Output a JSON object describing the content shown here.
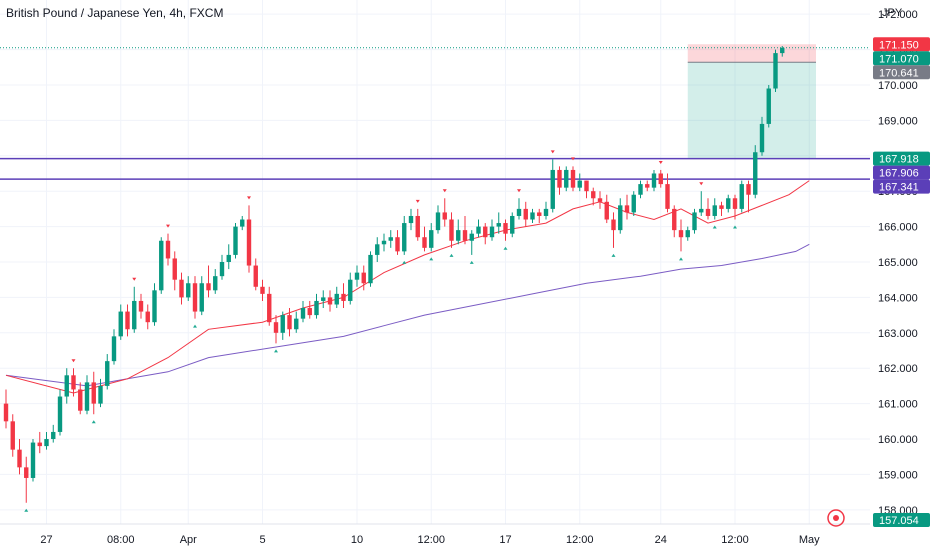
{
  "header": {
    "title": "British Pound / Japanese Yen, 4h, FXCM"
  },
  "chart_data": {
    "type": "candlestick",
    "currency": "JPY",
    "ylim": [
      157.6,
      172.4
    ],
    "y_ticks": [
      "172.000",
      "171.000",
      "170.000",
      "169.000",
      "168.000",
      "167.000",
      "166.000",
      "165.000",
      "164.000",
      "163.000",
      "162.000",
      "161.000",
      "160.000",
      "159.000",
      "158.000"
    ],
    "x_ticks": [
      {
        "label": "27",
        "bar": 6
      },
      {
        "label": "08:00",
        "bar": 17
      },
      {
        "label": "Apr",
        "bar": 27
      },
      {
        "label": "5",
        "bar": 38
      },
      {
        "label": "10",
        "bar": 52
      },
      {
        "label": "12:00",
        "bar": 63
      },
      {
        "label": "17",
        "bar": 74
      },
      {
        "label": "12:00",
        "bar": 85
      },
      {
        "label": "24",
        "bar": 97
      },
      {
        "label": "12:00",
        "bar": 108
      },
      {
        "label": "May",
        "bar": 119
      }
    ],
    "candles": [
      [
        161.0,
        160.5,
        161.4,
        160.3
      ],
      [
        160.5,
        159.7,
        160.7,
        159.5
      ],
      [
        159.7,
        159.2,
        160.0,
        159.0
      ],
      [
        159.2,
        158.9,
        159.5,
        158.2
      ],
      [
        158.9,
        159.9,
        160.0,
        158.8
      ],
      [
        159.9,
        159.8,
        160.2,
        159.6
      ],
      [
        159.8,
        160.0,
        160.2,
        159.7
      ],
      [
        160.0,
        160.2,
        160.4,
        159.9
      ],
      [
        160.2,
        161.2,
        161.4,
        160.1
      ],
      [
        161.2,
        161.8,
        162.0,
        161.0
      ],
      [
        161.8,
        161.4,
        162.0,
        161.2
      ],
      [
        161.4,
        160.8,
        161.6,
        160.7
      ],
      [
        160.8,
        161.6,
        161.8,
        160.7
      ],
      [
        161.6,
        161.0,
        161.9,
        160.7
      ],
      [
        161.0,
        161.5,
        161.7,
        160.9
      ],
      [
        161.5,
        162.2,
        162.4,
        161.4
      ],
      [
        162.2,
        162.9,
        163.1,
        162.1
      ],
      [
        162.9,
        163.6,
        163.8,
        162.8
      ],
      [
        163.6,
        163.1,
        163.8,
        162.9
      ],
      [
        163.1,
        163.9,
        164.3,
        163.0
      ],
      [
        163.9,
        163.6,
        164.1,
        163.4
      ],
      [
        163.6,
        163.3,
        163.8,
        163.1
      ],
      [
        163.3,
        164.2,
        164.4,
        163.2
      ],
      [
        164.2,
        165.6,
        165.7,
        164.1
      ],
      [
        165.6,
        165.1,
        165.8,
        164.9
      ],
      [
        165.1,
        164.5,
        165.3,
        164.2
      ],
      [
        164.5,
        164.0,
        164.7,
        163.8
      ],
      [
        164.0,
        164.4,
        164.6,
        163.9
      ],
      [
        164.4,
        163.6,
        164.6,
        163.4
      ],
      [
        163.6,
        164.4,
        164.6,
        163.5
      ],
      [
        164.4,
        164.2,
        164.9,
        164.0
      ],
      [
        164.2,
        164.6,
        164.8,
        164.1
      ],
      [
        164.6,
        165.0,
        165.2,
        164.5
      ],
      [
        165.0,
        165.2,
        165.5,
        164.8
      ],
      [
        165.2,
        166.0,
        166.1,
        165.1
      ],
      [
        166.0,
        166.2,
        166.3,
        165.9
      ],
      [
        166.2,
        164.9,
        166.6,
        164.7
      ],
      [
        164.9,
        164.3,
        165.1,
        164.2
      ],
      [
        164.3,
        164.1,
        164.5,
        163.9
      ],
      [
        164.1,
        163.3,
        164.3,
        163.2
      ],
      [
        163.3,
        163.0,
        163.5,
        162.7
      ],
      [
        163.0,
        163.5,
        163.6,
        162.8
      ],
      [
        163.5,
        163.1,
        163.7,
        162.9
      ],
      [
        163.1,
        163.4,
        163.6,
        163.0
      ],
      [
        163.4,
        163.7,
        163.9,
        163.3
      ],
      [
        163.7,
        163.5,
        163.9,
        163.4
      ],
      [
        163.5,
        163.9,
        164.1,
        163.4
      ],
      [
        163.9,
        164.0,
        164.2,
        163.7
      ],
      [
        164.0,
        163.8,
        164.2,
        163.6
      ],
      [
        163.8,
        164.1,
        164.3,
        163.7
      ],
      [
        164.1,
        163.9,
        164.4,
        163.7
      ],
      [
        163.9,
        164.5,
        164.7,
        163.8
      ],
      [
        164.5,
        164.7,
        164.9,
        164.3
      ],
      [
        164.7,
        164.4,
        164.9,
        164.2
      ],
      [
        164.4,
        165.2,
        165.3,
        164.3
      ],
      [
        165.2,
        165.5,
        165.7,
        165.0
      ],
      [
        165.5,
        165.6,
        165.8,
        165.3
      ],
      [
        165.6,
        165.7,
        165.9,
        165.4
      ],
      [
        165.7,
        165.3,
        165.9,
        165.2
      ],
      [
        165.3,
        166.1,
        166.3,
        165.2
      ],
      [
        166.1,
        166.3,
        166.5,
        165.9
      ],
      [
        166.3,
        165.7,
        166.5,
        165.6
      ],
      [
        165.7,
        165.4,
        166.0,
        165.3
      ],
      [
        165.4,
        165.9,
        166.1,
        165.3
      ],
      [
        165.9,
        166.4,
        166.6,
        165.8
      ],
      [
        166.4,
        166.2,
        166.8,
        166.0
      ],
      [
        166.2,
        165.6,
        166.4,
        165.4
      ],
      [
        165.6,
        165.9,
        166.2,
        165.5
      ],
      [
        165.9,
        165.6,
        166.3,
        165.5
      ],
      [
        165.6,
        165.8,
        165.9,
        165.2
      ],
      [
        165.8,
        166.0,
        166.2,
        165.7
      ],
      [
        166.0,
        165.7,
        166.1,
        165.5
      ],
      [
        165.7,
        166.0,
        166.2,
        165.6
      ],
      [
        166.0,
        166.1,
        166.4,
        165.8
      ],
      [
        166.1,
        165.8,
        166.2,
        165.6
      ],
      [
        165.8,
        166.3,
        166.4,
        165.7
      ],
      [
        166.3,
        166.5,
        166.8,
        166.2
      ],
      [
        166.5,
        166.2,
        166.7,
        166.0
      ],
      [
        166.2,
        166.4,
        166.5,
        166.1
      ],
      [
        166.4,
        166.3,
        166.5,
        166.1
      ],
      [
        166.3,
        166.5,
        166.7,
        166.2
      ],
      [
        166.5,
        167.6,
        167.9,
        166.4
      ],
      [
        167.6,
        167.1,
        167.7,
        166.9
      ],
      [
        167.1,
        167.6,
        167.7,
        167.0
      ],
      [
        167.6,
        167.1,
        167.7,
        167.0
      ],
      [
        167.1,
        167.3,
        167.5,
        167.0
      ],
      [
        167.3,
        167.0,
        167.3,
        166.8
      ],
      [
        167.0,
        166.8,
        167.1,
        166.6
      ],
      [
        166.8,
        166.7,
        167.0,
        166.5
      ],
      [
        166.7,
        166.2,
        166.9,
        166.1
      ],
      [
        166.2,
        165.9,
        166.4,
        165.4
      ],
      [
        165.9,
        166.6,
        166.8,
        165.8
      ],
      [
        166.6,
        166.4,
        166.9,
        166.2
      ],
      [
        166.4,
        166.9,
        167.0,
        166.3
      ],
      [
        166.9,
        167.2,
        167.3,
        166.8
      ],
      [
        167.2,
        167.1,
        167.3,
        167.0
      ],
      [
        167.1,
        167.5,
        167.6,
        167.0
      ],
      [
        167.5,
        167.2,
        167.6,
        167.1
      ],
      [
        167.2,
        166.5,
        167.5,
        166.4
      ],
      [
        166.5,
        165.9,
        166.6,
        165.7
      ],
      [
        165.9,
        165.7,
        166.2,
        165.3
      ],
      [
        165.7,
        165.9,
        166.0,
        165.6
      ],
      [
        165.9,
        166.4,
        166.5,
        165.8
      ],
      [
        166.4,
        166.5,
        167.0,
        166.3
      ],
      [
        166.5,
        166.3,
        166.8,
        166.2
      ],
      [
        166.3,
        166.6,
        166.8,
        166.2
      ],
      [
        166.6,
        166.5,
        166.7,
        166.3
      ],
      [
        166.5,
        166.8,
        166.9,
        166.4
      ],
      [
        166.8,
        166.5,
        166.9,
        166.2
      ],
      [
        166.5,
        167.2,
        167.3,
        166.4
      ],
      [
        167.2,
        166.9,
        167.3,
        166.4
      ],
      [
        166.9,
        168.1,
        168.3,
        166.8
      ],
      [
        168.1,
        168.9,
        169.1,
        168.0
      ],
      [
        168.9,
        169.9,
        170.0,
        168.8
      ],
      [
        169.9,
        170.9,
        171.0,
        169.8
      ],
      [
        170.9,
        171.05,
        171.1,
        170.8
      ]
    ],
    "ma_fast": [
      [
        0,
        161.8
      ],
      [
        10,
        161.3
      ],
      [
        18,
        161.7
      ],
      [
        24,
        162.3
      ],
      [
        30,
        163.1
      ],
      [
        38,
        163.3
      ],
      [
        44,
        163.7
      ],
      [
        50,
        164.0
      ],
      [
        56,
        164.7
      ],
      [
        62,
        165.2
      ],
      [
        68,
        165.6
      ],
      [
        74,
        165.9
      ],
      [
        80,
        166.1
      ],
      [
        84,
        166.5
      ],
      [
        88,
        166.7
      ],
      [
        92,
        166.4
      ],
      [
        96,
        166.2
      ],
      [
        100,
        166.5
      ],
      [
        104,
        166.1
      ],
      [
        108,
        166.3
      ],
      [
        112,
        166.6
      ],
      [
        116,
        166.9
      ],
      [
        119,
        167.3
      ]
    ],
    "ma_slow": [
      [
        0,
        161.8
      ],
      [
        12,
        161.5
      ],
      [
        18,
        161.7
      ],
      [
        24,
        161.9
      ],
      [
        30,
        162.3
      ],
      [
        40,
        162.6
      ],
      [
        50,
        162.9
      ],
      [
        56,
        163.2
      ],
      [
        62,
        163.5
      ],
      [
        70,
        163.8
      ],
      [
        78,
        164.1
      ],
      [
        86,
        164.4
      ],
      [
        94,
        164.6
      ],
      [
        100,
        164.8
      ],
      [
        106,
        164.9
      ],
      [
        112,
        165.1
      ],
      [
        117,
        165.3
      ],
      [
        119,
        165.5
      ]
    ],
    "horizontal_levels": [
      167.918,
      167.341
    ],
    "position_zone": {
      "start_bar": 101,
      "end_bar": 120,
      "entry": 170.641,
      "stop": 171.15,
      "target": 167.918
    },
    "price_badges": [
      {
        "value": "171.150",
        "price": 171.15,
        "color": "#f23645"
      },
      {
        "value": "171.070",
        "price": 171.07,
        "color": "#089981"
      },
      {
        "value": "170.641",
        "price": 170.641,
        "color": "#787b86"
      },
      {
        "value": "167.918",
        "price": 167.918,
        "color": "#089981"
      },
      {
        "value": "167.906",
        "price": 167.906,
        "color": "#5b3fb8"
      },
      {
        "value": "167.341",
        "price": 167.341,
        "color": "#5b3fb8"
      },
      {
        "value": "157.054",
        "price": 157.054,
        "color": "#089981"
      }
    ],
    "colors": {
      "up": "#089981",
      "down": "#f23645",
      "ma_fast": "#f23645",
      "ma_slow": "#7b5cc4",
      "level": "#5b3fb8"
    }
  }
}
